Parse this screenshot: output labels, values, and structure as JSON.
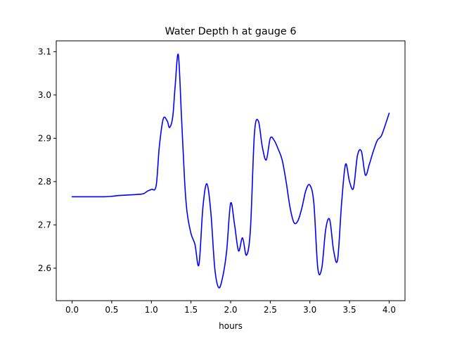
{
  "chart_data": {
    "type": "line",
    "title": "Water Depth h at gauge 6",
    "xlabel": "hours",
    "ylabel": "",
    "xlim": [
      -0.2,
      4.2
    ],
    "ylim": [
      2.525,
      3.125
    ],
    "x_ticks": [
      0.0,
      0.5,
      1.0,
      1.5,
      2.0,
      2.5,
      3.0,
      3.5,
      4.0
    ],
    "x_tick_labels": [
      "0.0",
      "0.5",
      "1.0",
      "1.5",
      "2.0",
      "2.5",
      "3.0",
      "3.5",
      "4.0"
    ],
    "y_ticks": [
      2.6,
      2.7,
      2.8,
      2.9,
      3.0,
      3.1
    ],
    "y_tick_labels": [
      "2.6",
      "2.7",
      "2.8",
      "2.9",
      "3.0",
      "3.1"
    ],
    "grid": false,
    "line_color": "#0000ff",
    "series": [
      {
        "x": [
          0.0,
          0.2,
          0.4,
          0.5,
          0.6,
          0.8,
          0.9,
          0.95,
          1.0,
          1.06,
          1.1,
          1.15,
          1.2,
          1.23,
          1.27,
          1.3,
          1.34,
          1.38,
          1.42,
          1.45,
          1.5,
          1.55,
          1.6,
          1.65,
          1.7,
          1.75,
          1.8,
          1.85,
          1.9,
          1.95,
          2.0,
          2.05,
          2.1,
          2.15,
          2.2,
          2.25,
          2.3,
          2.35,
          2.4,
          2.45,
          2.5,
          2.55,
          2.6,
          2.65,
          2.7,
          2.75,
          2.8,
          2.85,
          2.9,
          2.95,
          3.0,
          3.05,
          3.1,
          3.15,
          3.2,
          3.25,
          3.3,
          3.35,
          3.4,
          3.45,
          3.5,
          3.55,
          3.6,
          3.65,
          3.7,
          3.75,
          3.8,
          3.85,
          3.9,
          3.95,
          4.0
        ],
        "y": [
          2.765,
          2.765,
          2.765,
          2.766,
          2.768,
          2.77,
          2.772,
          2.778,
          2.782,
          2.79,
          2.88,
          2.945,
          2.94,
          2.925,
          2.95,
          3.02,
          3.093,
          2.95,
          2.8,
          2.73,
          2.68,
          2.655,
          2.608,
          2.74,
          2.795,
          2.73,
          2.6,
          2.555,
          2.58,
          2.64,
          2.75,
          2.7,
          2.64,
          2.67,
          2.63,
          2.69,
          2.91,
          2.94,
          2.88,
          2.85,
          2.9,
          2.895,
          2.875,
          2.85,
          2.8,
          2.74,
          2.705,
          2.71,
          2.74,
          2.78,
          2.792,
          2.75,
          2.6,
          2.6,
          2.69,
          2.712,
          2.64,
          2.62,
          2.75,
          2.84,
          2.8,
          2.785,
          2.86,
          2.87,
          2.815,
          2.84,
          2.87,
          2.895,
          2.905,
          2.93,
          2.958
        ]
      }
    ]
  }
}
